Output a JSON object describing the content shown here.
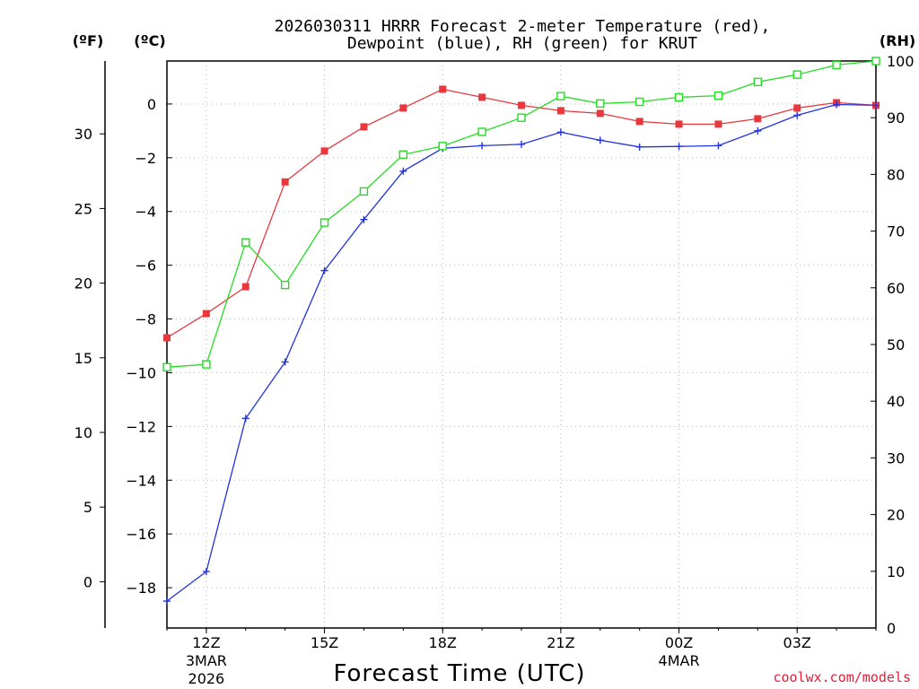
{
  "chart_data": {
    "type": "line",
    "title": "2026030311 HRRR Forecast 2-meter Temperature (red),",
    "subtitle": "Dewpoint (blue), RH (green) for KRUT",
    "xlabel": "Forecast Time (UTC)",
    "credit": "coolwx.com/models",
    "units": {
      "f": "(ºF)",
      "c": "(ºC)",
      "rh": "(RH)"
    },
    "x_hours": [
      11,
      12,
      13,
      14,
      15,
      16,
      17,
      18,
      19,
      20,
      21,
      22,
      23,
      24,
      25,
      26,
      27,
      28,
      29
    ],
    "xlim": [
      11,
      29
    ],
    "x_ticks": [
      {
        "hour": 12,
        "label": "12Z",
        "sub1": "3MAR",
        "sub2": "2026"
      },
      {
        "hour": 15,
        "label": "15Z",
        "sub1": "",
        "sub2": ""
      },
      {
        "hour": 18,
        "label": "18Z",
        "sub1": "",
        "sub2": ""
      },
      {
        "hour": 21,
        "label": "21Z",
        "sub1": "",
        "sub2": ""
      },
      {
        "hour": 24,
        "label": "00Z",
        "sub1": "4MAR",
        "sub2": ""
      },
      {
        "hour": 27,
        "label": "03Z",
        "sub1": "",
        "sub2": ""
      }
    ],
    "ylim_c": [
      -19.5,
      1.6
    ],
    "y_ticks_c": [
      0,
      -2,
      -4,
      -6,
      -8,
      -10,
      -12,
      -14,
      -16,
      -18
    ],
    "y_ticks_f": [
      30,
      25,
      20,
      15,
      10,
      5,
      0
    ],
    "y_ticks_rh": [
      100,
      90,
      80,
      70,
      60,
      50,
      40,
      30,
      20,
      10,
      0
    ],
    "series": [
      {
        "name": "Temperature",
        "unit": "C",
        "color": "#e8383d",
        "marker": "filled-square",
        "values": [
          -8.7,
          -7.8,
          -6.8,
          -2.9,
          -1.75,
          -0.85,
          -0.15,
          0.55,
          0.25,
          -0.05,
          -0.25,
          -0.35,
          -0.65,
          -0.75,
          -0.75,
          -0.55,
          -0.15,
          0.05,
          -0.05
        ]
      },
      {
        "name": "Dewpoint",
        "unit": "C",
        "color": "#2233e0",
        "marker": "plus",
        "values": [
          -18.5,
          -17.4,
          -11.7,
          -9.6,
          -6.2,
          -4.3,
          -2.5,
          -1.65,
          -1.55,
          -1.5,
          -1.05,
          -1.35,
          -1.6,
          -1.58,
          -1.55,
          -1.0,
          -0.42,
          -0.02,
          -0.05
        ]
      },
      {
        "name": "RH",
        "unit": "%",
        "color": "#22dd22",
        "marker": "open-square",
        "values": [
          46,
          46.5,
          68,
          60.5,
          71.5,
          77,
          83.5,
          85,
          87.5,
          90,
          93.8,
          92.5,
          92.8,
          93.6,
          93.9,
          96.3,
          97.6,
          99.3,
          100
        ]
      }
    ]
  }
}
